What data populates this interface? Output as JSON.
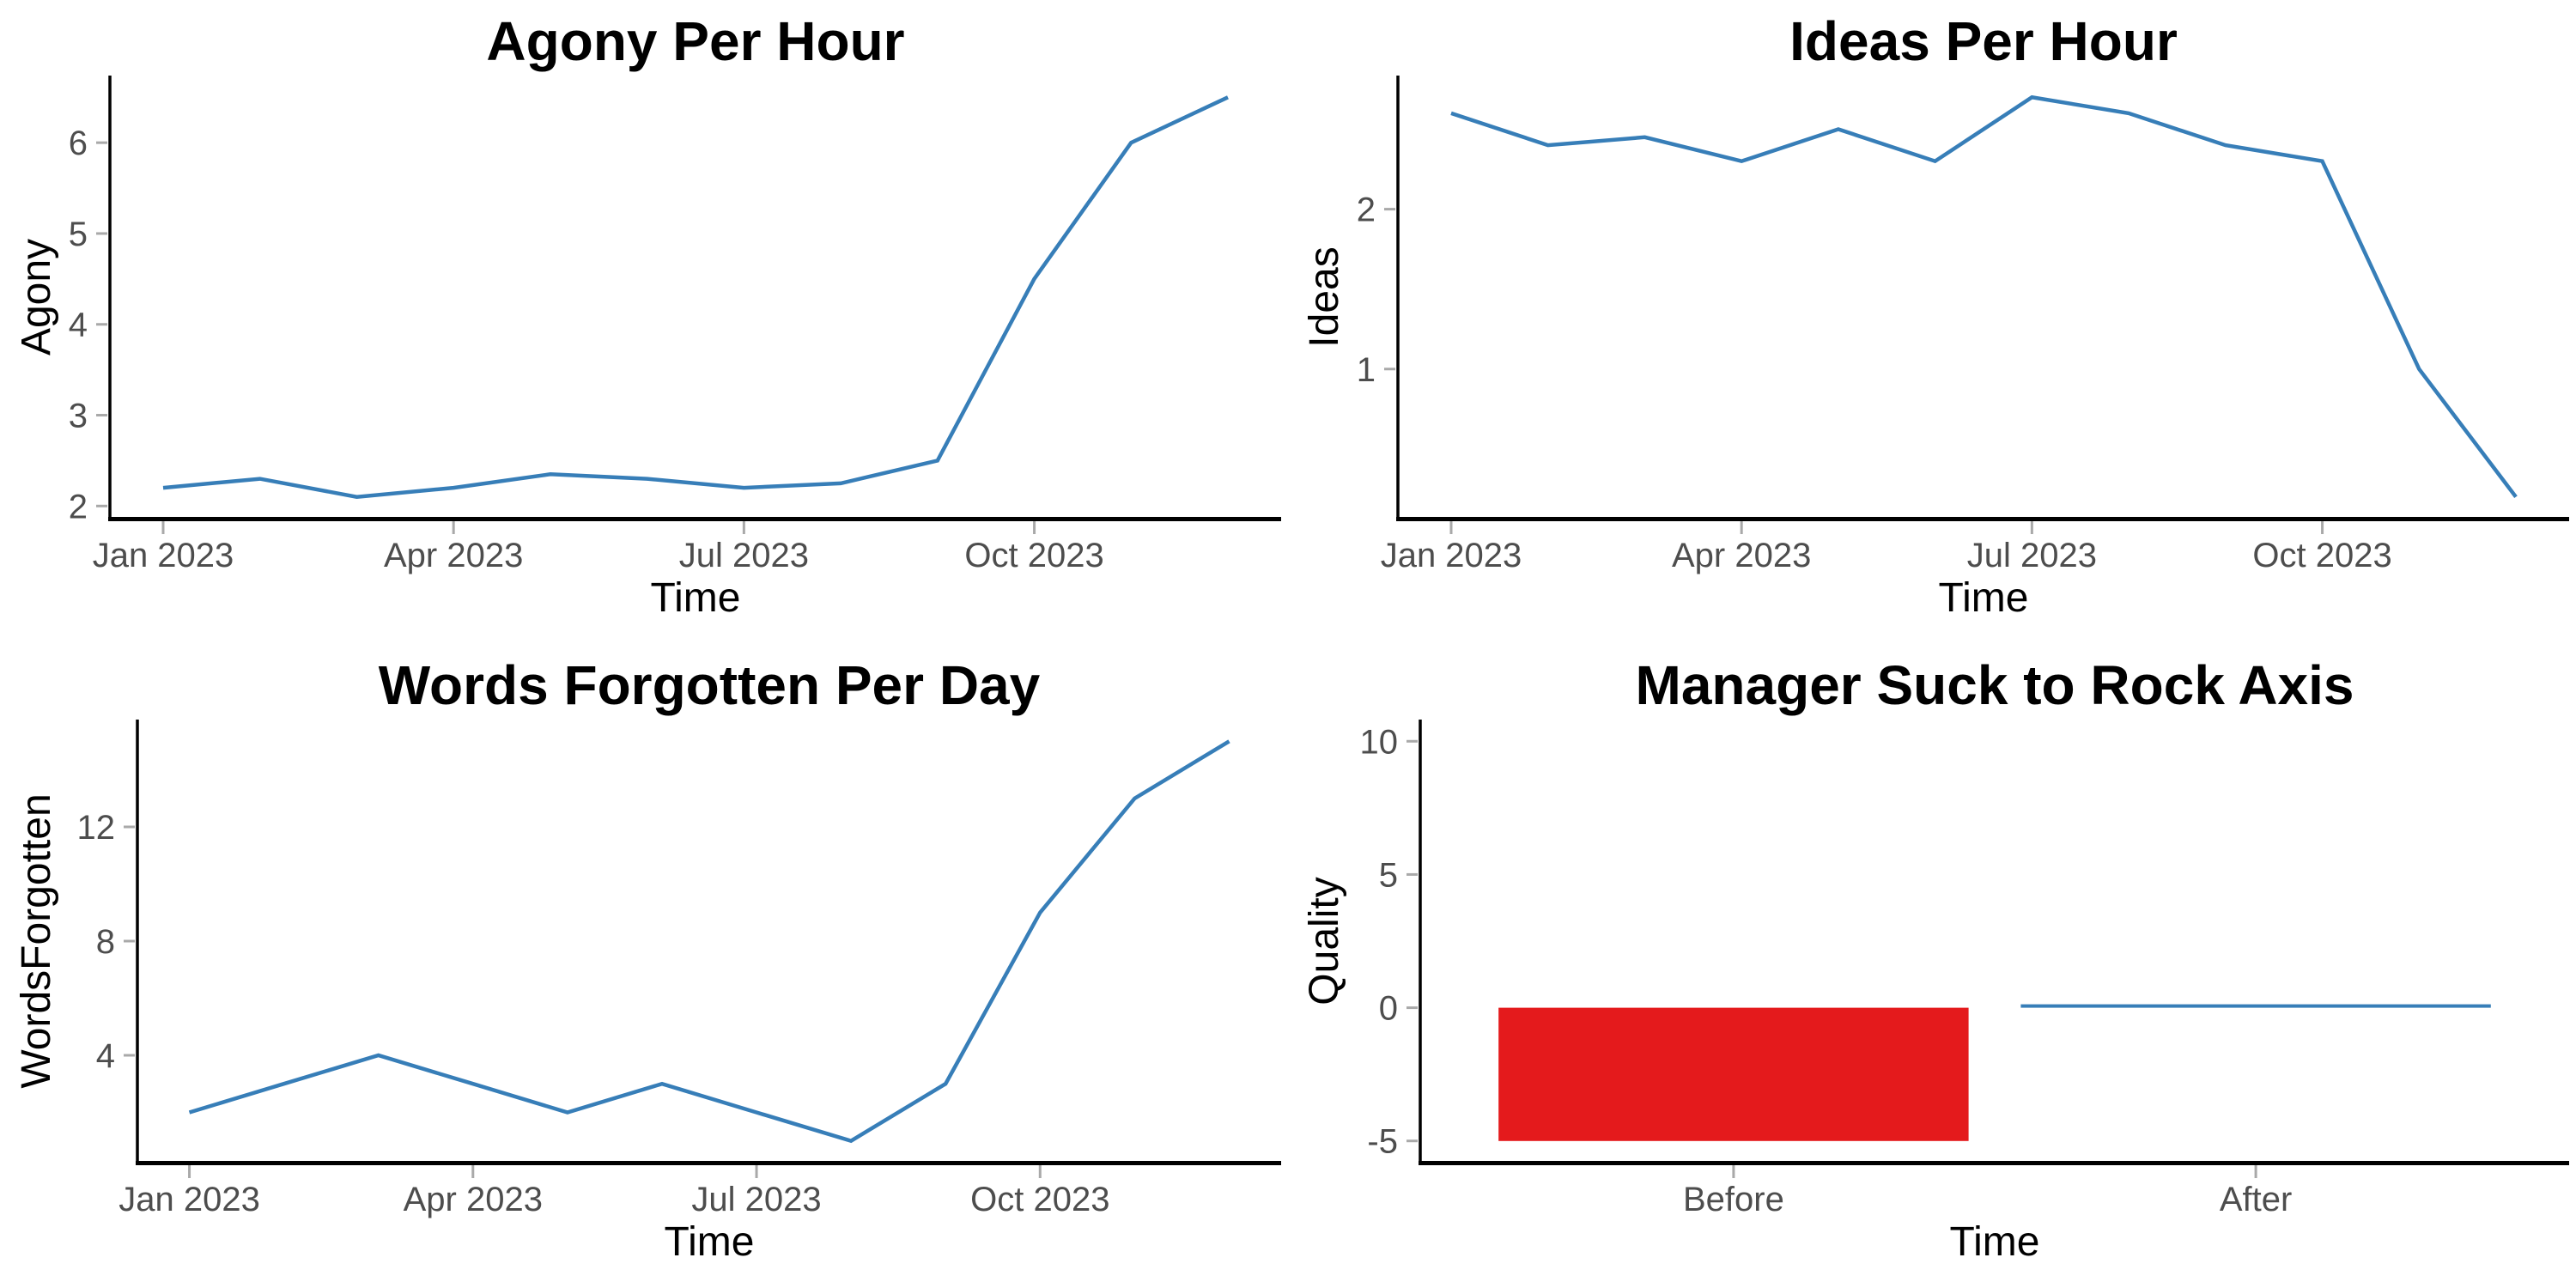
{
  "page": {
    "background": "#FFFFFF"
  },
  "colors": {
    "line": "#377EB8",
    "bar_negative": "#E41A1C",
    "bar_after": "#377EB8",
    "axis_line": "#000000",
    "tick_mark": "#A9A9A9",
    "tick_label": "#4D4D4D",
    "title_text": "#000000"
  },
  "chart_data": [
    {
      "type": "line",
      "title": "Agony Per Hour",
      "xlabel": "Time",
      "ylabel": "Agony",
      "x": [
        "Jan 2023",
        "Feb 2023",
        "Mar 2023",
        "Apr 2023",
        "May 2023",
        "Jun 2023",
        "Jul 2023",
        "Aug 2023",
        "Sep 2023",
        "Oct 2023",
        "Nov 2023",
        "Dec 2023"
      ],
      "values": [
        2.2,
        2.3,
        2.1,
        2.2,
        2.35,
        2.3,
        2.2,
        2.25,
        2.5,
        4.5,
        6.0,
        6.5
      ],
      "x_tick_labels": [
        "Jan 2023",
        "Apr 2023",
        "Jul 2023",
        "Oct 2023"
      ],
      "x_tick_indices": [
        0,
        3,
        6,
        9
      ],
      "yticks": [
        2,
        3,
        4,
        5,
        6
      ],
      "ylim": [
        1.88,
        6.72
      ],
      "line_color": "#377EB8",
      "grid": false,
      "legend": "none"
    },
    {
      "type": "line",
      "title": "Ideas Per Hour",
      "xlabel": "Time",
      "ylabel": "Ideas",
      "x": [
        "Jan 2023",
        "Feb 2023",
        "Mar 2023",
        "Apr 2023",
        "May 2023",
        "Jun 2023",
        "Jul 2023",
        "Aug 2023",
        "Sep 2023",
        "Oct 2023",
        "Nov 2023",
        "Dec 2023"
      ],
      "values": [
        2.6,
        2.4,
        2.45,
        2.3,
        2.5,
        2.3,
        2.7,
        2.6,
        2.4,
        2.3,
        1.0,
        0.2
      ],
      "x_tick_labels": [
        "Jan 2023",
        "Apr 2023",
        "Jul 2023",
        "Oct 2023"
      ],
      "x_tick_indices": [
        0,
        3,
        6,
        9
      ],
      "yticks": [
        1,
        2
      ],
      "ylim": [
        0.075,
        2.825
      ],
      "line_color": "#377EB8",
      "grid": false,
      "legend": "none"
    },
    {
      "type": "line",
      "title": "Words Forgotten Per Day",
      "xlabel": "Time",
      "ylabel": "WordsForgotten",
      "x": [
        "Jan 2023",
        "Feb 2023",
        "Mar 2023",
        "Apr 2023",
        "May 2023",
        "Jun 2023",
        "Jul 2023",
        "Aug 2023",
        "Sep 2023",
        "Oct 2023",
        "Nov 2023",
        "Dec 2023"
      ],
      "values": [
        2,
        3,
        4,
        3,
        2,
        3,
        2,
        1,
        3,
        9,
        13,
        15
      ],
      "x_tick_labels": [
        "Jan 2023",
        "Apr 2023",
        "Jul 2023",
        "Oct 2023"
      ],
      "x_tick_indices": [
        0,
        3,
        6,
        9
      ],
      "yticks": [
        4,
        8,
        12
      ],
      "ylim": [
        0.3,
        15.7
      ],
      "line_color": "#377EB8",
      "grid": false,
      "legend": "none"
    },
    {
      "type": "bar",
      "title": "Manager Suck to Rock Axis",
      "xlabel": "Time",
      "ylabel": "Quality",
      "categories": [
        "Before",
        "After"
      ],
      "values": [
        -5,
        0.05
      ],
      "bar_colors": [
        "#E41A1C",
        "#377EB8"
      ],
      "yticks": [
        -5,
        0,
        5,
        10
      ],
      "ylim": [
        -5.75,
        10.75
      ],
      "grid": false,
      "legend": "none"
    }
  ]
}
